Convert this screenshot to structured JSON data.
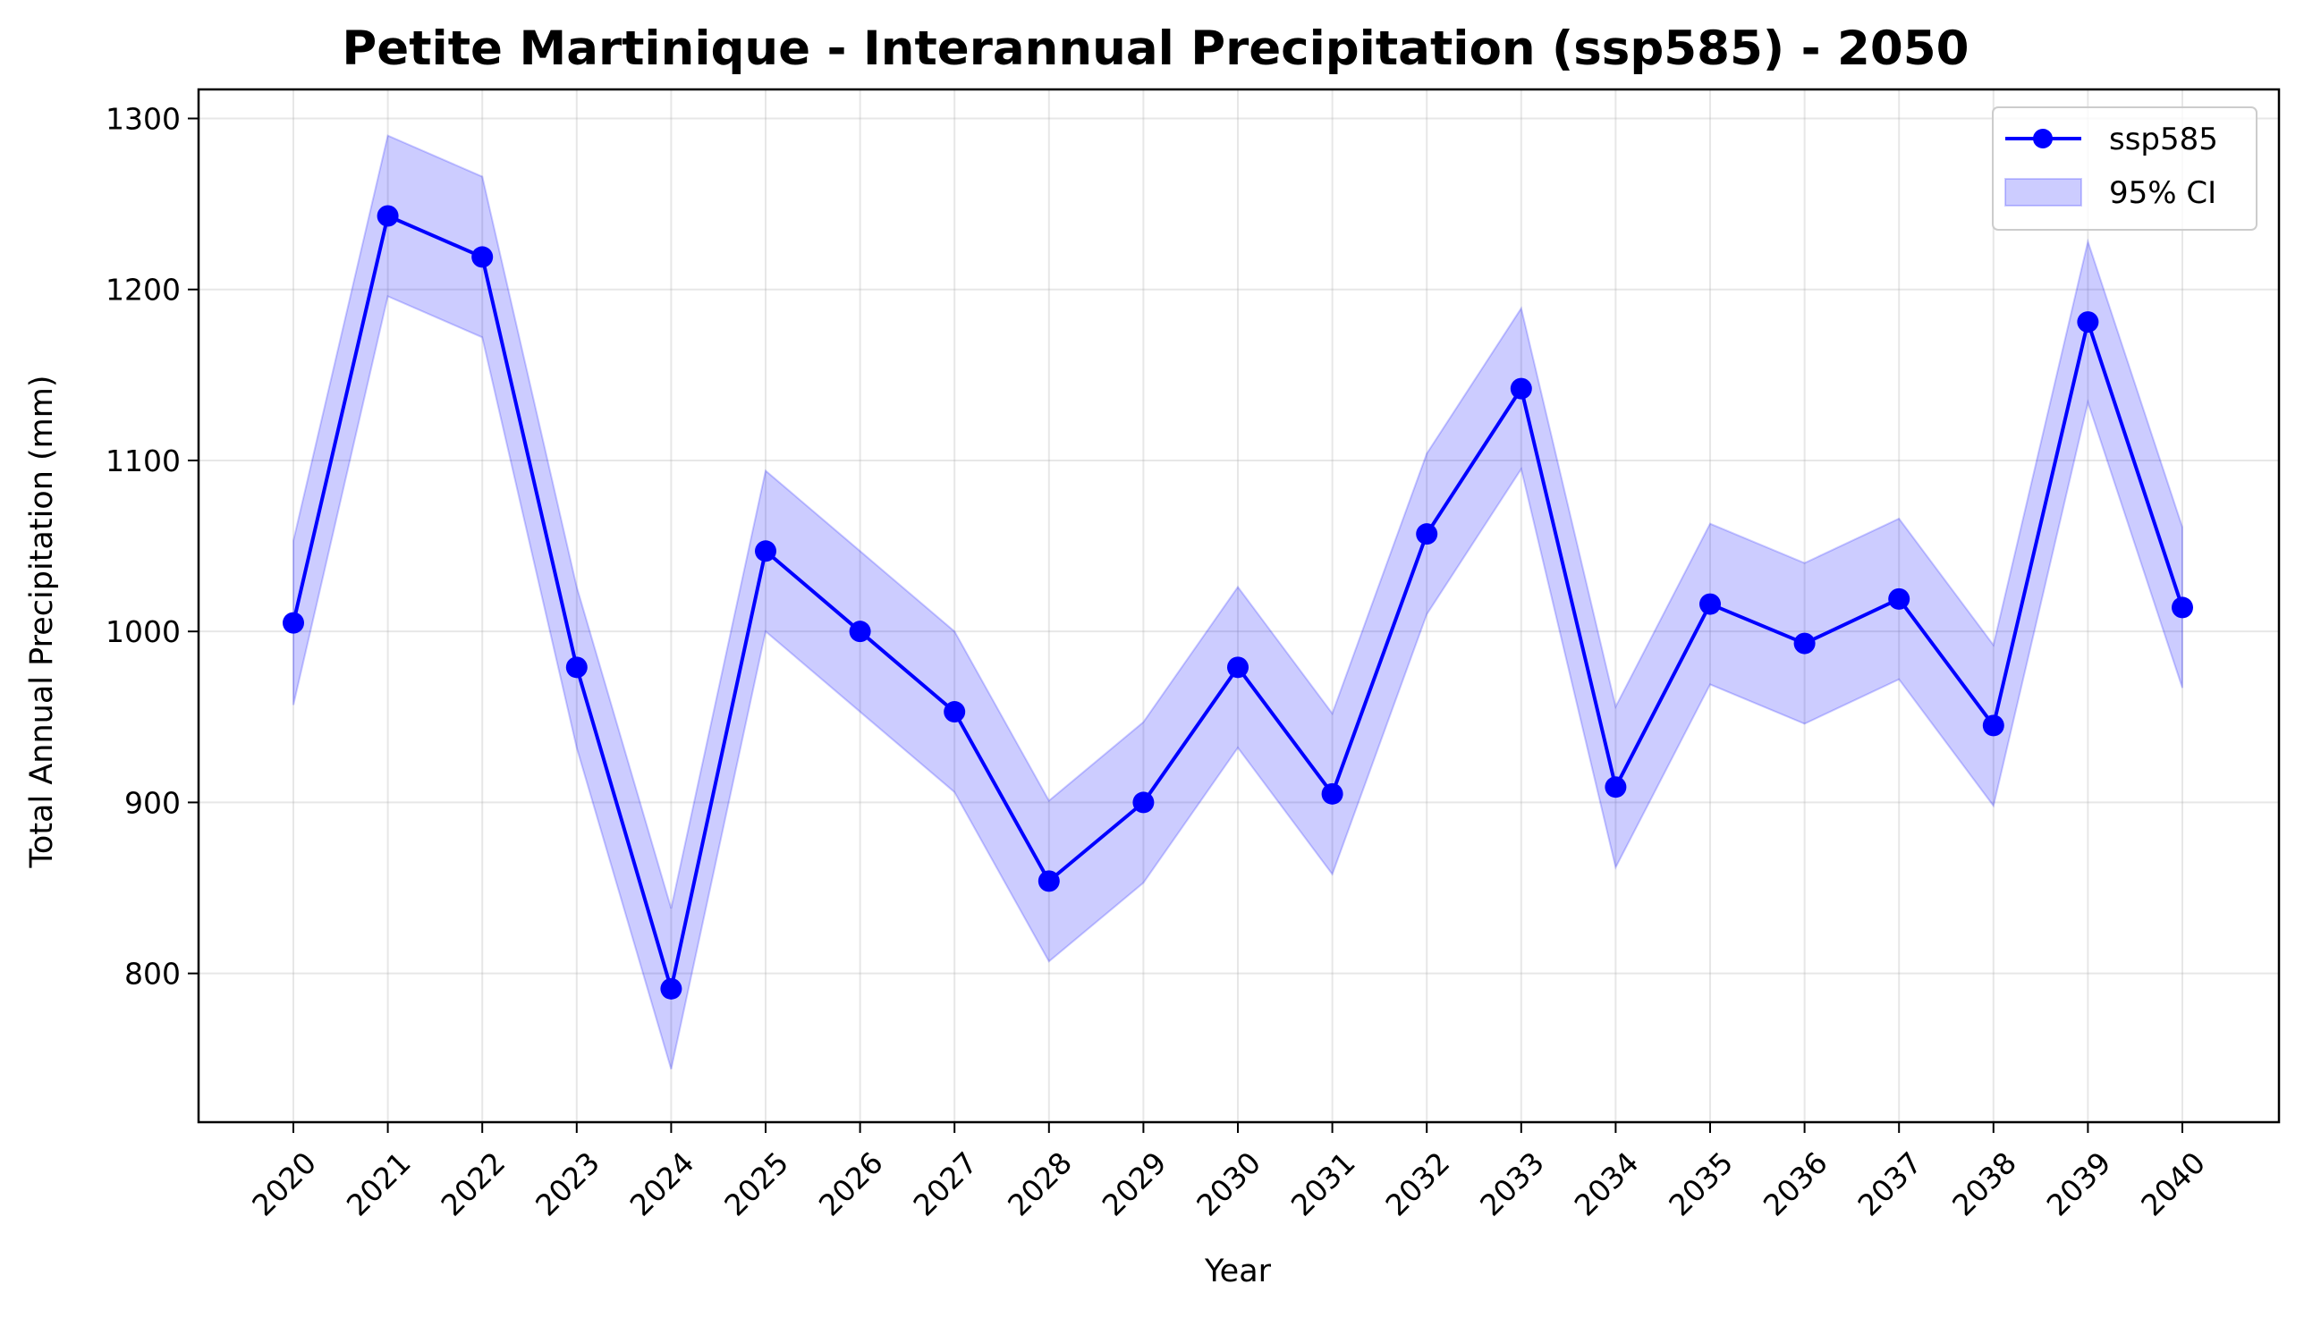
{
  "chart_data": {
    "type": "line",
    "title": "Petite Martinique - Interannual Precipitation (ssp585) - 2050",
    "xlabel": "Year",
    "ylabel": "Total Annual Precipitation (mm)",
    "x": [
      "2020",
      "2021",
      "2022",
      "2023",
      "2024",
      "2025",
      "2026",
      "2027",
      "2028",
      "2029",
      "2030",
      "2031",
      "2032",
      "2033",
      "2034",
      "2035",
      "2036",
      "2037",
      "2038",
      "2039",
      "2040"
    ],
    "series": [
      {
        "name": "ssp585",
        "color": "#0000ff",
        "values": [
          1005,
          1243,
          1219,
          979,
          791,
          1047,
          1000,
          953,
          854,
          900,
          979,
          905,
          1057,
          1142,
          909,
          1016,
          993,
          1019,
          945,
          1181,
          1014
        ]
      }
    ],
    "ci_band": {
      "name": "95% CI",
      "color": "#0000ff",
      "upper": [
        1053,
        1290,
        1266,
        1026,
        838,
        1094,
        1047,
        1000,
        901,
        947,
        1026,
        952,
        1104,
        1189,
        956,
        1063,
        1040,
        1066,
        992,
        1228,
        1061
      ],
      "lower": [
        957,
        1196,
        1172,
        932,
        744,
        1000,
        953,
        906,
        807,
        853,
        932,
        858,
        1010,
        1095,
        862,
        969,
        946,
        972,
        898,
        1134,
        967
      ]
    },
    "yticks": [
      800,
      900,
      1000,
      1100,
      1200,
      1300
    ],
    "ylim": [
      713,
      1317
    ],
    "grid": true,
    "legend_position": "top-right"
  }
}
